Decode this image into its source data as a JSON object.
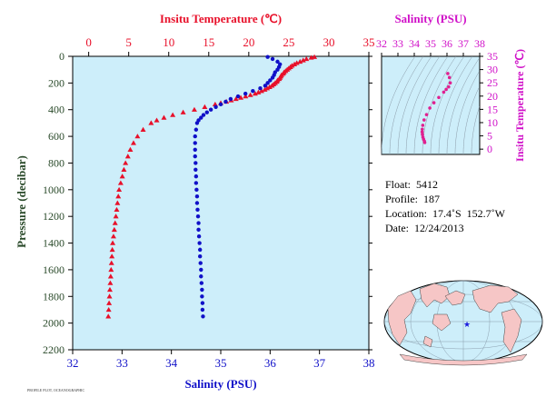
{
  "chart_data": [
    {
      "type": "scatter",
      "xlabel_top": "Insitu Temperature (℃)",
      "xlabel_bottom": "Salinity (PSU)",
      "ylabel": "Pressure (decibar)",
      "temperature_axis": {
        "range": [
          -2,
          35
        ],
        "ticks": [
          0,
          5,
          10,
          15,
          20,
          25,
          30,
          35
        ],
        "color": "#e8102a"
      },
      "salinity_axis": {
        "range": [
          32,
          38
        ],
        "ticks": [
          32,
          33,
          34,
          35,
          36,
          37,
          38
        ],
        "color": "#1010c8"
      },
      "pressure_axis": {
        "range": [
          0,
          2200
        ],
        "inverted": true,
        "ticks": [
          0,
          200,
          400,
          600,
          800,
          1000,
          1200,
          1400,
          1600,
          1800,
          2000,
          2200
        ]
      },
      "background_color": "#cdeefa",
      "series": [
        {
          "marker": "triangle",
          "color": "#e8102a",
          "pressure": [
            5,
            10,
            20,
            30,
            40,
            50,
            60,
            70,
            80,
            90,
            100,
            110,
            120,
            130,
            140,
            150,
            160,
            170,
            180,
            190,
            200,
            210,
            220,
            230,
            240,
            250,
            260,
            270,
            280,
            290,
            300,
            310,
            320,
            330,
            340,
            350,
            360,
            380,
            400,
            420,
            440,
            460,
            480,
            500,
            550,
            600,
            650,
            700,
            750,
            800,
            850,
            900,
            950,
            1000,
            1050,
            1100,
            1150,
            1200,
            1250,
            1300,
            1350,
            1400,
            1450,
            1500,
            1550,
            1600,
            1650,
            1700,
            1750,
            1800,
            1850,
            1900,
            1950
          ],
          "value": [
            28.2,
            27.8,
            27.2,
            26.8,
            26.4,
            26.0,
            25.7,
            25.4,
            25.2,
            25.0,
            24.8,
            24.6,
            24.4,
            24.3,
            24.1,
            24.0,
            23.9,
            23.8,
            23.6,
            23.5,
            23.3,
            23.1,
            22.9,
            22.6,
            22.3,
            22.0,
            21.6,
            21.2,
            20.8,
            20.2,
            19.6,
            19.0,
            18.4,
            17.8,
            17.2,
            16.5,
            15.8,
            14.5,
            13.2,
            11.8,
            10.5,
            9.4,
            8.5,
            7.8,
            6.8,
            6.1,
            5.6,
            5.2,
            4.9,
            4.6,
            4.4,
            4.2,
            4.0,
            3.8,
            3.7,
            3.6,
            3.5,
            3.4,
            3.3,
            3.2,
            3.1,
            3.0,
            2.95,
            2.9,
            2.85,
            2.8,
            2.75,
            2.7,
            2.65,
            2.6,
            2.55,
            2.5,
            2.45
          ]
        },
        {
          "marker": "circle",
          "color": "#1010c8",
          "pressure": [
            5,
            20,
            40,
            60,
            80,
            100,
            120,
            140,
            160,
            180,
            200,
            220,
            240,
            260,
            280,
            300,
            320,
            340,
            360,
            380,
            400,
            420,
            440,
            460,
            480,
            500,
            550,
            600,
            650,
            700,
            750,
            800,
            850,
            900,
            950,
            1000,
            1050,
            1100,
            1150,
            1200,
            1250,
            1300,
            1350,
            1400,
            1450,
            1500,
            1550,
            1600,
            1650,
            1700,
            1750,
            1800,
            1850,
            1900,
            1950
          ],
          "value": [
            35.95,
            36.05,
            36.15,
            36.2,
            36.18,
            36.15,
            36.1,
            36.08,
            36.05,
            36.0,
            35.95,
            35.9,
            35.8,
            35.65,
            35.5,
            35.35,
            35.2,
            35.1,
            35.0,
            34.9,
            34.8,
            34.72,
            34.65,
            34.6,
            34.55,
            34.52,
            34.5,
            34.48,
            34.48,
            34.48,
            34.48,
            34.49,
            34.49,
            34.5,
            34.5,
            34.51,
            34.52,
            34.52,
            34.53,
            34.54,
            34.55,
            34.55,
            34.56,
            34.57,
            34.58,
            34.58,
            34.59,
            34.6,
            34.6,
            34.61,
            34.62,
            34.62,
            34.63,
            34.63,
            34.64
          ]
        }
      ]
    },
    {
      "type": "scatter",
      "title": "Salinity (PSU)",
      "xlabel": "",
      "ylabel": "Insitu Temperature (℃)",
      "salinity_axis": {
        "range": [
          32,
          38
        ],
        "ticks": [
          32,
          33,
          34,
          35,
          36,
          37,
          38
        ],
        "color": "#d010c8"
      },
      "temperature_axis": {
        "range": [
          -2,
          35
        ],
        "ticks": [
          0,
          5,
          10,
          15,
          20,
          25,
          30,
          35
        ],
        "color": "#d010c8"
      },
      "background_color": "#cdeefa",
      "series": [
        {
          "marker": "circle",
          "color": "#e02090",
          "salinity": [
            36.05,
            36.15,
            36.2,
            36.1,
            35.95,
            35.8,
            35.5,
            35.2,
            34.95,
            34.75,
            34.6,
            34.52,
            34.49,
            34.48,
            34.5,
            34.53,
            34.57,
            34.62,
            34.64
          ],
          "temperature": [
            28.5,
            27.0,
            25.0,
            23.5,
            22.5,
            21.5,
            19.5,
            17.5,
            15.5,
            13.0,
            11.0,
            9.0,
            7.5,
            6.5,
            5.5,
            4.5,
            3.7,
            3.0,
            2.5
          ]
        }
      ]
    }
  ],
  "float_info": {
    "float": "Float:  5412",
    "profile": "Profile:  187",
    "location": "Location:  17.4˚S  152.7˚W",
    "date": "Date:  12/24/2013"
  },
  "map": {
    "marker_color": "#1a1adc",
    "land_color": "#f6c6c6",
    "ocean_color": "#cdeefa"
  },
  "footer": "PROFILE PLOT, OCEANOGRAPHIC"
}
